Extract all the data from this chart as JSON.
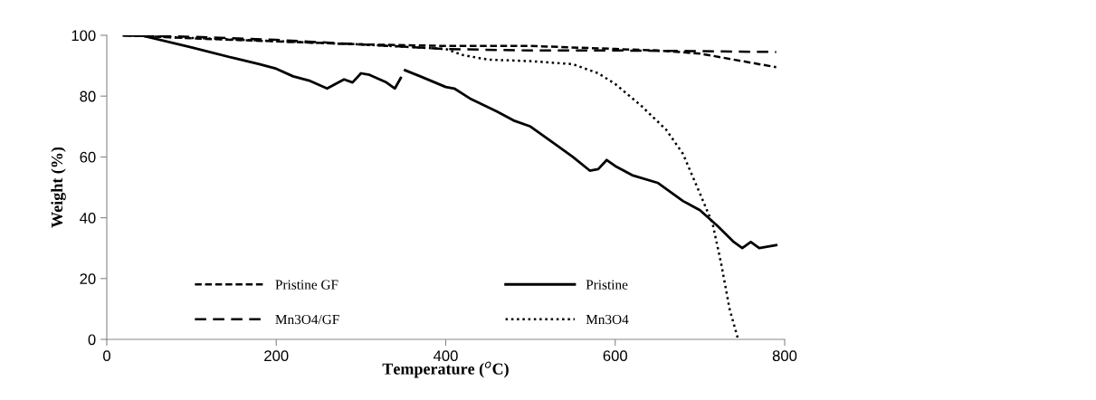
{
  "chart_data": {
    "type": "line",
    "xlabel": "Temperature ($^{o}$C)",
    "ylabel": "Weight (%)",
    "xlim": [
      0,
      800
    ],
    "xticks": [
      0,
      200,
      400,
      600,
      800
    ],
    "ylim": [
      0,
      100
    ],
    "yticks": [
      0,
      20,
      40,
      60,
      80,
      100
    ],
    "grid": false,
    "legend": "bottom",
    "marker": "none",
    "series": [
      {
        "name": "Pristine GF",
        "color": "#000000",
        "line_style": "dashed",
        "x": [
          20,
          100,
          200,
          300,
          400,
          500,
          600,
          650,
          700,
          750,
          790
        ],
        "values": [
          100,
          99,
          98,
          97,
          96.5,
          96.5,
          95.5,
          95,
          94,
          91.5,
          89.5
        ]
      },
      {
        "name": "Mn3O4/GF",
        "color": "#000000",
        "line_style": "dashed",
        "x": [
          20,
          100,
          200,
          300,
          400,
          500,
          600,
          700,
          790
        ],
        "values": [
          100,
          99.5,
          98.5,
          97,
          95.5,
          95,
          95,
          94.8,
          94.5
        ]
      },
      {
        "name": "Pristine",
        "color": "#000000",
        "line_style": "solid",
        "x": [
          20,
          40,
          100,
          150,
          180,
          200,
          220,
          240,
          260,
          280,
          290,
          300,
          310,
          330,
          340,
          347,
          349,
          352,
          370,
          400,
          410,
          430,
          460,
          480,
          500,
          530,
          550,
          570,
          580,
          590,
          600,
          620,
          650,
          680,
          700,
          720,
          740,
          750,
          760,
          770,
          790
        ],
        "values": [
          100,
          100,
          96,
          92.5,
          90.5,
          89,
          86.5,
          85,
          82.5,
          85.5,
          84.5,
          87.5,
          87,
          84.5,
          82.5,
          86,
          null,
          88.5,
          86.5,
          83,
          82.5,
          79,
          75,
          72,
          70,
          64,
          60,
          55.5,
          56,
          59,
          57,
          54,
          51.5,
          45.5,
          42.5,
          37.5,
          32,
          30,
          32,
          30,
          31
        ]
      },
      {
        "name": "Mn3O4",
        "color": "#000000",
        "line_style": "dotted",
        "x": [
          20,
          300,
          400,
          420,
          450,
          500,
          550,
          580,
          600,
          630,
          660,
          680,
          700,
          715,
          725,
          735,
          745
        ],
        "values": [
          100,
          97,
          95.5,
          93.5,
          92,
          91.5,
          90.5,
          87.5,
          84,
          77,
          69,
          61,
          48,
          38,
          25,
          10,
          0
        ]
      }
    ]
  }
}
